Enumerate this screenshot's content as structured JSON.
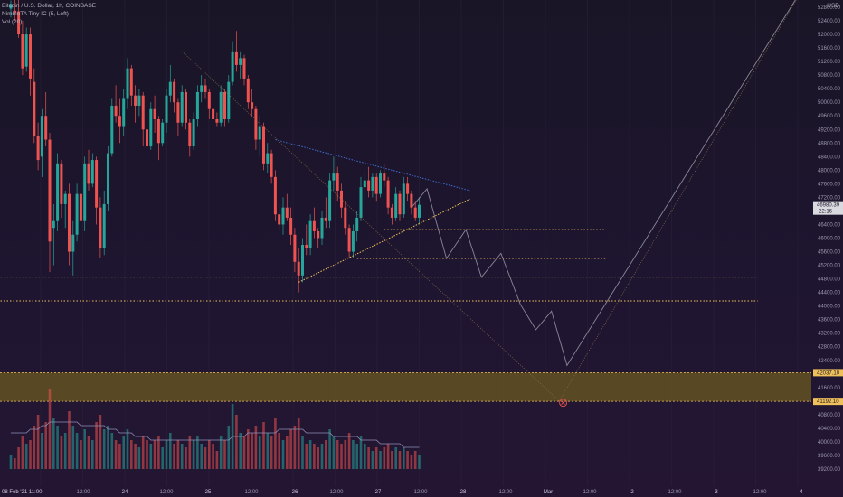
{
  "legend": {
    "symbol": "Bitcoin / U.S. Dollar, 1h, COINBASE",
    "indicator": "NimbleTA Tiny IC (5, Left)",
    "volume": "Vol (20)"
  },
  "currency": "USD",
  "colors": {
    "bull": "#26a69a",
    "bear": "#ef5350",
    "support_dots": "#f0c05a",
    "wedge_top": "#3f6fd1",
    "wedge_bottom": "#f0c05a",
    "zone_fill": "#6b5a20",
    "zone_border": "#f0c05a",
    "projection": "#8b8797",
    "diagonal": "#8a6f46",
    "volume_ma": "#8d8eb5",
    "current_price_bg": "#d9d9e0",
    "level_tag_bg": "#f0c05a",
    "target_marker": "#ef5350"
  },
  "chart_data": {
    "type": "candlestick",
    "timeframe": "1h",
    "y_axis_ticks": [
      52800,
      52400,
      52000,
      51600,
      51200,
      50800,
      50400,
      50000,
      49600,
      49200,
      48800,
      48400,
      48000,
      47600,
      47200,
      46800,
      46400,
      46000,
      45600,
      45200,
      44800,
      44400,
      44000,
      43600,
      43200,
      42800,
      42400,
      42000,
      41600,
      41200,
      40800,
      40400,
      40000,
      39600,
      39200
    ],
    "y_axis_tick_labels": [
      "52800.00",
      "52400.00",
      "52000.00",
      "51600.00",
      "51200.00",
      "50800.00",
      "50400.00",
      "50000.00",
      "49600.00",
      "49200.00",
      "48800.00",
      "48400.00",
      "48000.00",
      "47600.00",
      "47200.00",
      "46800.00",
      "46400.00",
      "46000.00",
      "45600.00",
      "45200.00",
      "44800.00",
      "44400.00",
      "44000.00",
      "43600.00",
      "43200.00",
      "42800.00",
      "42400.00",
      "42000.00",
      "41600.00",
      "41200.00",
      "40800.00",
      "40400.00",
      "40000.00",
      "39600.00",
      "39200.00"
    ],
    "y_range": [
      39000,
      53600
    ],
    "x_axis_labels": [
      "08 Feb '21  11:00",
      "12:00",
      "24",
      "12:00",
      "25",
      "12:00",
      "26",
      "12:00",
      "27",
      "12:00",
      "28",
      "12:00",
      "Mar",
      "12:00",
      "2",
      "12:00",
      "3",
      "12:00",
      "4"
    ],
    "bold_x_labels": [
      0,
      2,
      4,
      6,
      8,
      10,
      12,
      14,
      16,
      18
    ],
    "current_price": {
      "value": 46980.39,
      "label": "46980.39",
      "countdown": "22:16"
    },
    "level_tags": [
      {
        "value": 42037.1,
        "label": "42037.10"
      },
      {
        "value": 41192.1,
        "label": "41192.10"
      }
    ],
    "demand_zone": {
      "top": 42037.1,
      "bottom": 41192.1
    },
    "support_levels": [
      {
        "price": 46250,
        "start_bar": 96,
        "end_bar": 153
      },
      {
        "price": 45400,
        "start_bar": 89,
        "end_bar": 153
      },
      {
        "price": 44850,
        "start_bar": -10,
        "end_bar": 192
      },
      {
        "price": 44150,
        "start_bar": -10,
        "end_bar": 192
      }
    ],
    "wedge": {
      "upper": {
        "from": [
          68,
          48900
        ],
        "to": [
          118,
          47400
        ]
      },
      "lower": {
        "from": [
          74,
          44700
        ],
        "to": [
          118,
          47150
        ]
      }
    },
    "diagonal_from_high": {
      "from": [
        44,
        51500
      ],
      "to": [
        141,
        41200
      ]
    },
    "diagonal_to_top": {
      "from": [
        141,
        41200
      ],
      "to": [
        206,
        53800
      ]
    },
    "target_marker": {
      "bar": 142,
      "price": 41150
    },
    "projection_path": [
      [
        103,
        46900
      ],
      [
        107,
        47450
      ],
      [
        112,
        45400
      ],
      [
        117,
        46250
      ],
      [
        121,
        44850
      ],
      [
        126,
        45550
      ],
      [
        131,
        44050
      ],
      [
        135,
        43300
      ],
      [
        139,
        43850
      ],
      [
        143,
        42250
      ],
      [
        206,
        53800
      ]
    ],
    "candles": [
      [
        52760,
        53000,
        52500,
        52900
      ],
      [
        52700,
        53050,
        52400,
        52650
      ],
      [
        52680,
        53100,
        51900,
        52000
      ],
      [
        52000,
        52400,
        50800,
        51000
      ],
      [
        51050,
        52200,
        50900,
        52000
      ],
      [
        52000,
        52200,
        50200,
        50700
      ],
      [
        50600,
        51000,
        48800,
        49000
      ],
      [
        49000,
        49400,
        48000,
        48300
      ],
      [
        48400,
        49800,
        47800,
        49600
      ],
      [
        49600,
        50300,
        48700,
        48900
      ],
      [
        48900,
        49100,
        45000,
        45900
      ],
      [
        46300,
        47000,
        45200,
        46500
      ],
      [
        46500,
        48500,
        46200,
        48200
      ],
      [
        48200,
        48300,
        46600,
        47000
      ],
      [
        47000,
        47400,
        46300,
        47300
      ],
      [
        47300,
        47600,
        45200,
        45600
      ],
      [
        45600,
        46500,
        44900,
        46100
      ],
      [
        46100,
        47600,
        45900,
        47300
      ],
      [
        47300,
        47700,
        46000,
        46500
      ],
      [
        46500,
        48400,
        46200,
        48200
      ],
      [
        48200,
        48600,
        47400,
        47600
      ],
      [
        47600,
        48500,
        47500,
        48300
      ],
      [
        48300,
        48400,
        46400,
        46900
      ],
      [
        46900,
        47200,
        45400,
        45700
      ],
      [
        45700,
        47400,
        45500,
        47000
      ],
      [
        47000,
        48700,
        46800,
        48500
      ],
      [
        48500,
        50100,
        48400,
        49900
      ],
      [
        49900,
        50500,
        49400,
        49600
      ],
      [
        49600,
        50100,
        48800,
        49300
      ],
      [
        49300,
        50400,
        49000,
        50100
      ],
      [
        50100,
        51300,
        49800,
        51000
      ],
      [
        51000,
        51100,
        49900,
        50200
      ],
      [
        50200,
        50500,
        49400,
        49900
      ],
      [
        49900,
        50400,
        49600,
        50200
      ],
      [
        50200,
        50300,
        48700,
        49200
      ],
      [
        49200,
        49600,
        48400,
        48700
      ],
      [
        48700,
        50000,
        48600,
        49800
      ],
      [
        49800,
        50200,
        49100,
        49500
      ],
      [
        49500,
        49600,
        48300,
        48800
      ],
      [
        48800,
        49500,
        48700,
        49400
      ],
      [
        49400,
        50400,
        49100,
        50200
      ],
      [
        50200,
        51100,
        50000,
        50600
      ],
      [
        50600,
        50700,
        49700,
        50000
      ],
      [
        50000,
        50100,
        49000,
        49400
      ],
      [
        49400,
        50500,
        49300,
        50300
      ],
      [
        50300,
        50400,
        49200,
        49400
      ],
      [
        49400,
        49500,
        48400,
        48700
      ],
      [
        48700,
        49700,
        48600,
        49500
      ],
      [
        49500,
        50500,
        49300,
        50300
      ],
      [
        50300,
        50800,
        50000,
        50500
      ],
      [
        50500,
        50700,
        50100,
        50300
      ],
      [
        50300,
        50400,
        49500,
        49800
      ],
      [
        49800,
        50100,
        49300,
        49500
      ],
      [
        49500,
        49700,
        49300,
        49400
      ],
      [
        49400,
        50500,
        49300,
        50300
      ],
      [
        50300,
        50400,
        49300,
        49500
      ],
      [
        49500,
        50800,
        49400,
        50600
      ],
      [
        50600,
        51800,
        50500,
        51500
      ],
      [
        51500,
        52100,
        50900,
        51100
      ],
      [
        51100,
        51500,
        50700,
        51300
      ],
      [
        51300,
        51400,
        50500,
        50700
      ],
      [
        50700,
        50800,
        49800,
        50000
      ],
      [
        50000,
        50400,
        49600,
        49800
      ],
      [
        49800,
        49900,
        48600,
        48900
      ],
      [
        48900,
        49600,
        48400,
        49300
      ],
      [
        49300,
        49400,
        48000,
        48200
      ],
      [
        48200,
        48800,
        47900,
        48500
      ],
      [
        48500,
        48600,
        47600,
        47800
      ],
      [
        47800,
        48000,
        46500,
        46700
      ],
      [
        46700,
        47000,
        46200,
        46400
      ],
      [
        46400,
        47200,
        46100,
        46900
      ],
      [
        46900,
        47300,
        46500,
        46600
      ],
      [
        46600,
        46900,
        45800,
        46100
      ],
      [
        46100,
        46300,
        45000,
        45300
      ],
      [
        45300,
        45700,
        44400,
        44900
      ],
      [
        44900,
        46000,
        44700,
        45800
      ],
      [
        45800,
        46400,
        45500,
        45700
      ],
      [
        45700,
        46700,
        45500,
        46500
      ],
      [
        46500,
        46900,
        46000,
        46200
      ],
      [
        46200,
        46300,
        45700,
        46000
      ],
      [
        46000,
        46800,
        45800,
        46600
      ],
      [
        46600,
        47200,
        46300,
        46500
      ],
      [
        46500,
        47900,
        46300,
        47700
      ],
      [
        47700,
        48400,
        47400,
        47900
      ],
      [
        47900,
        48100,
        47100,
        47400
      ],
      [
        47400,
        47600,
        46600,
        46900
      ],
      [
        46900,
        47100,
        46100,
        46300
      ],
      [
        46300,
        46400,
        45400,
        45600
      ],
      [
        45600,
        46400,
        45400,
        46200
      ],
      [
        46200,
        46800,
        45900,
        46600
      ],
      [
        46600,
        47800,
        46500,
        47500
      ],
      [
        47500,
        48000,
        47100,
        47700
      ],
      [
        47700,
        48100,
        47200,
        47400
      ],
      [
        47400,
        47900,
        47200,
        47800
      ],
      [
        47800,
        47900,
        47100,
        47300
      ],
      [
        47300,
        48000,
        47200,
        47900
      ],
      [
        47900,
        48200,
        47500,
        47700
      ],
      [
        47700,
        47800,
        46700,
        46900
      ],
      [
        46900,
        47000,
        46400,
        46600
      ],
      [
        46600,
        47500,
        46500,
        47300
      ],
      [
        47300,
        47400,
        46500,
        46700
      ],
      [
        46700,
        47800,
        46600,
        47600
      ],
      [
        47600,
        47800,
        47100,
        47300
      ],
      [
        47300,
        47400,
        46700,
        46900
      ],
      [
        46900,
        47100,
        46500,
        46600
      ],
      [
        46600,
        47200,
        46400,
        46980
      ]
    ],
    "volume_axis": [
      39200,
      53600
    ],
    "volume_scale_note": "relative",
    "volume": [
      4,
      3,
      6,
      9,
      7,
      8,
      12,
      15,
      10,
      13,
      22,
      14,
      12,
      9,
      10,
      16,
      12,
      10,
      8,
      11,
      9,
      8,
      13,
      15,
      11,
      12,
      10,
      8,
      7,
      9,
      11,
      8,
      7,
      6,
      9,
      8,
      7,
      8,
      9,
      6,
      8,
      10,
      7,
      8,
      7,
      6,
      9,
      8,
      9,
      7,
      6,
      8,
      7,
      5,
      9,
      8,
      12,
      18,
      15,
      10,
      9,
      11,
      10,
      12,
      9,
      13,
      10,
      9,
      14,
      10,
      8,
      9,
      11,
      12,
      14,
      9,
      7,
      8,
      7,
      6,
      7,
      8,
      11,
      9,
      8,
      7,
      8,
      10,
      8,
      7,
      9,
      7,
      6,
      5,
      6,
      5,
      6,
      7,
      5,
      6,
      5,
      6,
      5,
      4,
      5,
      4
    ],
    "volume_ma": [
      10,
      10,
      10,
      10,
      10,
      11,
      11,
      11,
      12,
      12,
      13,
      13,
      13,
      13,
      13,
      13,
      13,
      13,
      12,
      12,
      12,
      12,
      12,
      12,
      12,
      11,
      11,
      11,
      10,
      10,
      10,
      10,
      9,
      9,
      9,
      9,
      8,
      8,
      8,
      8,
      8,
      8,
      8,
      8,
      8,
      8,
      8,
      8,
      8,
      8,
      8,
      8,
      8,
      8,
      8,
      8,
      8,
      9,
      9,
      9,
      9,
      10,
      10,
      10,
      10,
      10,
      10,
      10,
      10,
      11,
      11,
      11,
      11,
      11,
      11,
      11,
      10,
      10,
      10,
      10,
      10,
      10,
      10,
      9,
      9,
      9,
      9,
      9,
      9,
      9,
      8,
      8,
      8,
      8,
      8,
      7,
      7,
      7,
      7,
      7,
      7,
      6,
      6,
      6,
      6,
      6
    ]
  }
}
